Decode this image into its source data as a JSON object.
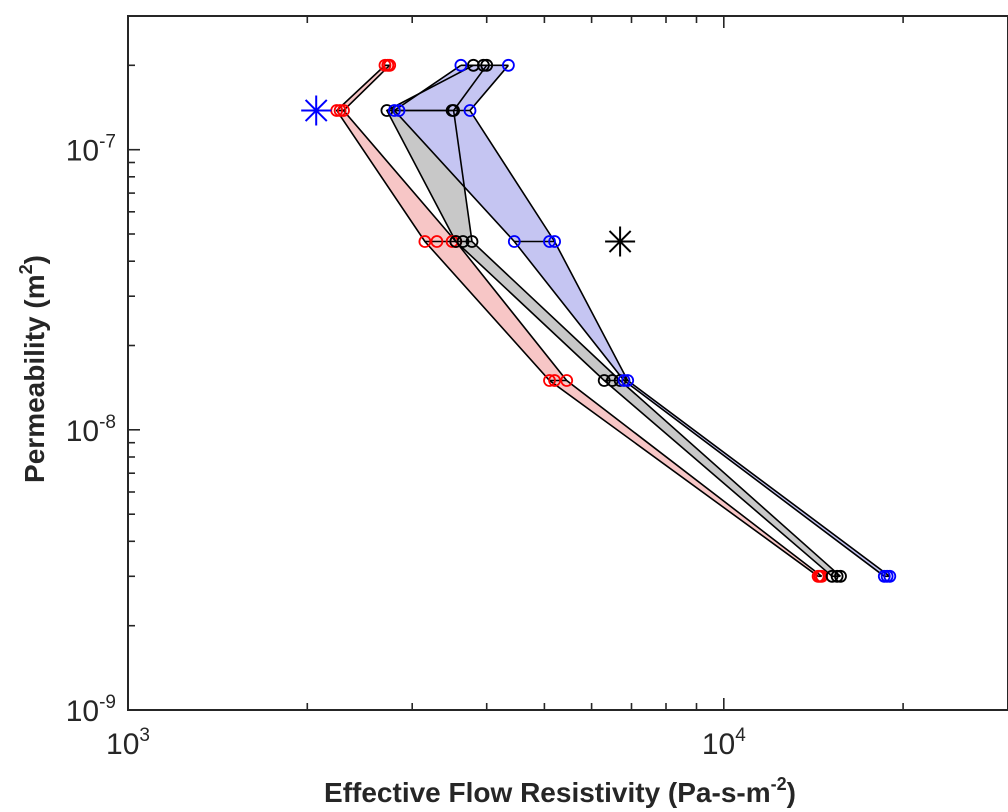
{
  "chart_data": {
    "type": "line",
    "xscale": "log",
    "yscale": "log",
    "xlim": [
      1000,
      30000
    ],
    "ylim": [
      1e-09,
      3e-07
    ],
    "grid": false,
    "xlabel": {
      "main": "Effective Flow Resistivity (Pa-s-m",
      "sup": "-2",
      "tail": ")"
    },
    "ylabel": {
      "main": "Permeability (m",
      "sup": "2",
      "tail": ")"
    },
    "xticks": [
      {
        "value": 1000,
        "base": "10",
        "exp": "3"
      },
      {
        "value": 10000,
        "base": "10",
        "exp": "4"
      }
    ],
    "yticks": [
      {
        "value": 1e-09,
        "base": "10",
        "exp": "-9"
      },
      {
        "value": 1e-08,
        "base": "10",
        "exp": "-8"
      },
      {
        "value": 1e-07,
        "base": "10",
        "exp": "-7"
      }
    ],
    "levels": [
      2e-07,
      1.38e-07,
      4.7e-08,
      1.5e-08,
      3e-09
    ],
    "series": [
      {
        "color": "#ff0000",
        "fill": "#f7c6c6",
        "points": [
          [
            2700.0,
            2e-07
          ],
          [
            2730.0,
            2e-07
          ],
          [
            2750.0,
            2e-07
          ],
          [
            2240.0,
            1.38e-07
          ],
          [
            2270.0,
            1.38e-07
          ],
          [
            2300.0,
            1.38e-07
          ],
          [
            3150.0,
            4.7e-08
          ],
          [
            3300.0,
            4.7e-08
          ],
          [
            3500.0,
            4.7e-08
          ],
          [
            3550.0,
            4.7e-08
          ],
          [
            5100.0,
            1.5e-08
          ],
          [
            5200.0,
            1.5e-08
          ],
          [
            5450.0,
            1.5e-08
          ],
          [
            14400.0,
            3e-09
          ],
          [
            14500.0,
            3e-09
          ],
          [
            14600.0,
            3e-09
          ]
        ],
        "envelope": {
          "left": [
            [
              2700.0,
              2e-07
            ],
            [
              2240.0,
              1.38e-07
            ],
            [
              3150.0,
              4.7e-08
            ],
            [
              5100.0,
              1.5e-08
            ],
            [
              14400.0,
              3e-09
            ]
          ],
          "right": [
            [
              2750.0,
              2e-07
            ],
            [
              2300.0,
              1.38e-07
            ],
            [
              3550.0,
              4.7e-08
            ],
            [
              5450.0,
              1.5e-08
            ],
            [
              14600.0,
              3e-09
            ]
          ]
        }
      },
      {
        "color": "#000000",
        "fill": "#c8c8c8",
        "points": [
          [
            3800.0,
            2e-07
          ],
          [
            3950.0,
            2e-07
          ],
          [
            4000.0,
            2e-07
          ],
          [
            2720.0,
            1.38e-07
          ],
          [
            3500.0,
            1.38e-07
          ],
          [
            3520.0,
            1.38e-07
          ],
          [
            3550.0,
            4.7e-08
          ],
          [
            3650.0,
            4.7e-08
          ],
          [
            3780.0,
            4.7e-08
          ],
          [
            6300.0,
            1.5e-08
          ],
          [
            6500.0,
            1.5e-08
          ],
          [
            6700.0,
            1.5e-08
          ],
          [
            15200.0,
            3e-09
          ],
          [
            15500.0,
            3e-09
          ],
          [
            15700.0,
            3e-09
          ]
        ],
        "envelope": {
          "left": [
            [
              3800.0,
              2e-07
            ],
            [
              2720.0,
              1.38e-07
            ],
            [
              3550.0,
              4.7e-08
            ],
            [
              6300.0,
              1.5e-08
            ],
            [
              15200.0,
              3e-09
            ]
          ],
          "right": [
            [
              4000.0,
              2e-07
            ],
            [
              3520.0,
              1.38e-07
            ],
            [
              3780.0,
              4.7e-08
            ],
            [
              6700.0,
              1.5e-08
            ],
            [
              15700.0,
              3e-09
            ]
          ]
        }
      },
      {
        "color": "#0000ff",
        "fill": "#c5c5f2",
        "points": [
          [
            3620.0,
            2e-07
          ],
          [
            4350.0,
            2e-07
          ],
          [
            2800.0,
            1.38e-07
          ],
          [
            2850.0,
            1.38e-07
          ],
          [
            3750.0,
            1.38e-07
          ],
          [
            4450.0,
            4.7e-08
          ],
          [
            5100.0,
            4.7e-08
          ],
          [
            5200.0,
            4.7e-08
          ],
          [
            6800.0,
            1.5e-08
          ],
          [
            6900.0,
            1.5e-08
          ],
          [
            18600.0,
            3e-09
          ],
          [
            18800.0,
            3e-09
          ],
          [
            19000.0,
            3e-09
          ]
        ],
        "envelope": {
          "left": [
            [
              3620.0,
              2e-07
            ],
            [
              2800.0,
              1.38e-07
            ],
            [
              4450.0,
              4.7e-08
            ],
            [
              6800.0,
              1.5e-08
            ],
            [
              18600.0,
              3e-09
            ]
          ],
          "right": [
            [
              4350.0,
              2e-07
            ],
            [
              3750.0,
              1.38e-07
            ],
            [
              5200.0,
              4.7e-08
            ],
            [
              6900.0,
              1.5e-08
            ],
            [
              19000.0,
              3e-09
            ]
          ]
        }
      }
    ],
    "markers": [
      {
        "x": 2070.0,
        "y": 1.38e-07,
        "color": "#0000ff",
        "symbol": "asterisk"
      },
      {
        "x": 6700.0,
        "y": 4.7e-08,
        "color": "#000000",
        "symbol": "asterisk"
      }
    ]
  }
}
